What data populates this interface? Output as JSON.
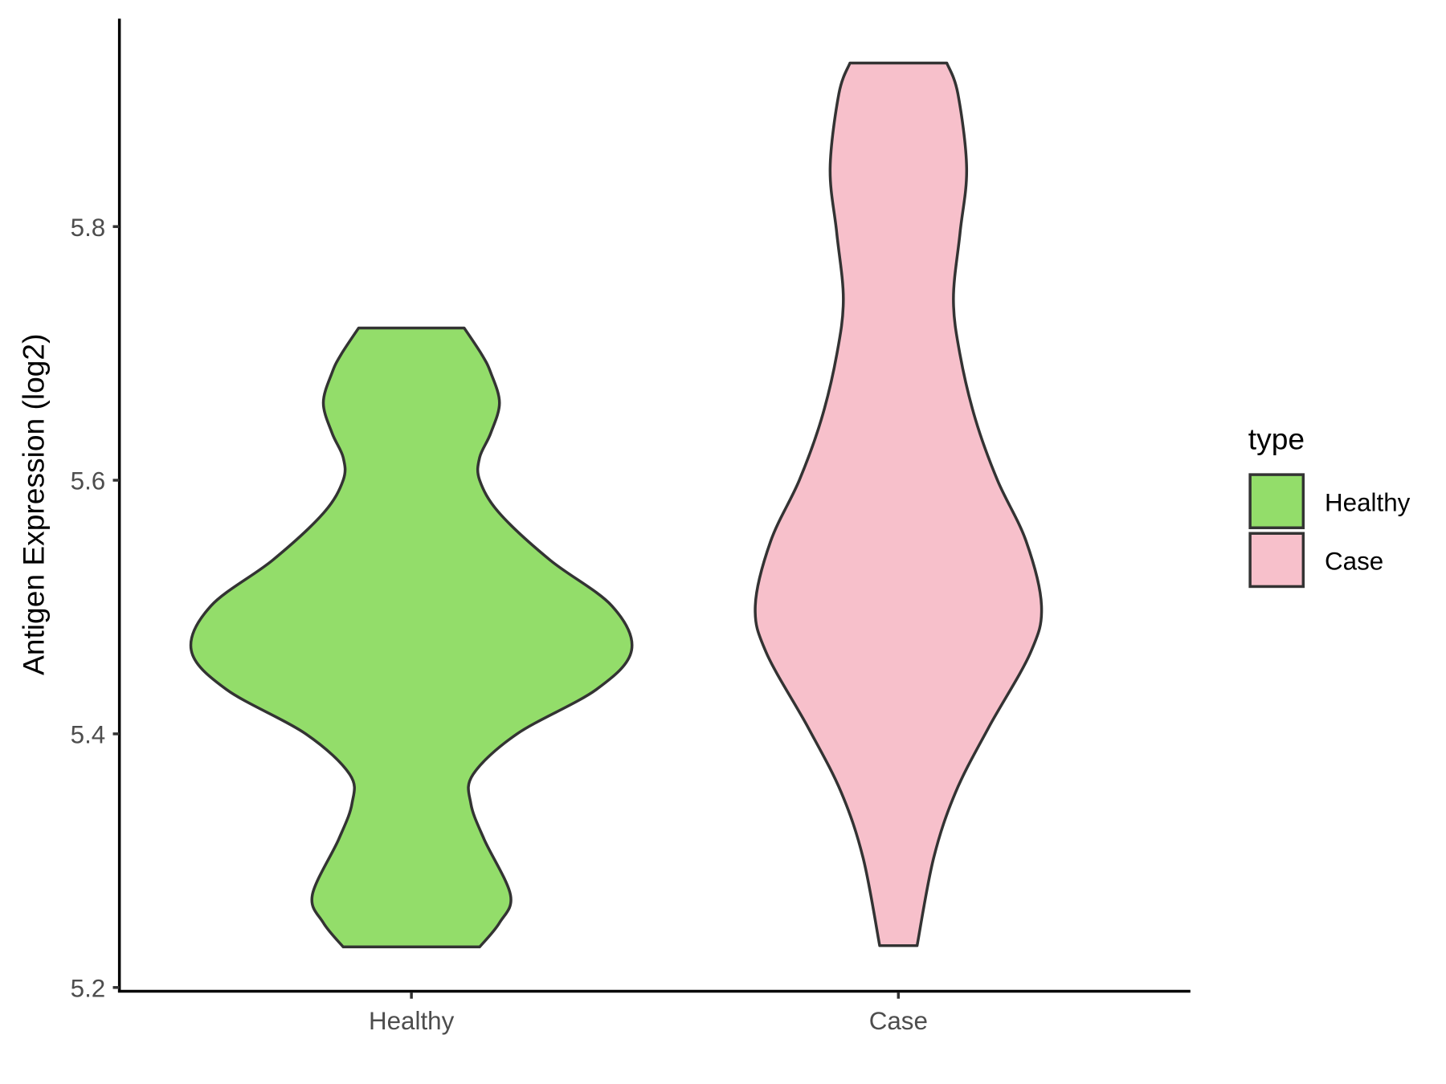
{
  "chart_data": {
    "type": "violin",
    "title": "",
    "xlabel": "",
    "ylabel": "Antigen Expression (log2)",
    "ylim": [
      5.2,
      5.96
    ],
    "yticks": [
      "5.2",
      "5.4",
      "5.6",
      "5.8"
    ],
    "categories": [
      "Healthy",
      "Case"
    ],
    "grid": false,
    "legend": {
      "title": "type",
      "position": "right",
      "entries": [
        "Healthy",
        "Case"
      ]
    },
    "series": [
      {
        "name": "Healthy",
        "color": "#93DD6A",
        "density_profile": {
          "y": [
            5.232,
            5.251,
            5.273,
            5.317,
            5.345,
            5.368,
            5.4,
            5.435,
            5.466,
            5.501,
            5.537,
            5.574,
            5.6,
            5.618,
            5.637,
            5.661,
            5.685,
            5.699,
            5.72
          ],
          "relative_width": [
            0.31,
            0.4,
            0.45,
            0.33,
            0.27,
            0.28,
            0.48,
            0.84,
            1.0,
            0.91,
            0.63,
            0.4,
            0.31,
            0.31,
            0.36,
            0.4,
            0.36,
            0.32,
            0.24
          ]
        }
      },
      {
        "name": "Case",
        "color": "#F7C0CB",
        "density_profile": {
          "y": [
            5.233,
            5.302,
            5.354,
            5.405,
            5.464,
            5.501,
            5.552,
            5.6,
            5.648,
            5.699,
            5.743,
            5.795,
            5.846,
            5.905,
            5.929
          ],
          "relative_width": [
            0.085,
            0.16,
            0.26,
            0.41,
            0.6,
            0.65,
            0.58,
            0.45,
            0.35,
            0.28,
            0.25,
            0.28,
            0.31,
            0.27,
            0.22
          ]
        }
      }
    ]
  }
}
